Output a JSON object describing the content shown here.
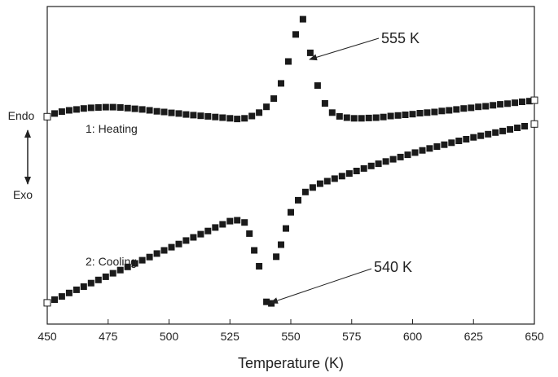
{
  "chart_data": {
    "type": "scatter",
    "xlabel": "Temperature (K)",
    "ylabel": "",
    "xlim": [
      450,
      650
    ],
    "ylim": [
      0,
      1
    ],
    "x_ticks": [
      450,
      475,
      500,
      525,
      550,
      575,
      600,
      625,
      650
    ],
    "x_tick_labels": [
      "450",
      "475",
      "500",
      "525",
      "550",
      "575",
      "600",
      "625",
      "650"
    ],
    "y_ticks_shown": false,
    "grid": false,
    "side_labels": {
      "top": "Endo",
      "bottom": "Exo"
    },
    "series": [
      {
        "name": "1: Heating",
        "marker": "filled-square",
        "color": "#1a1a1a",
        "x": [
          450,
          453,
          456,
          459,
          462,
          465,
          468,
          471,
          474,
          477,
          480,
          483,
          486,
          489,
          492,
          495,
          498,
          501,
          504,
          507,
          510,
          513,
          516,
          519,
          522,
          525,
          528,
          531,
          534,
          537,
          540,
          543,
          546,
          549,
          552,
          555,
          558,
          561,
          564,
          567,
          570,
          573,
          576,
          579,
          582,
          585,
          588,
          591,
          594,
          597,
          600,
          603,
          606,
          609,
          612,
          615,
          618,
          621,
          624,
          627,
          630,
          633,
          636,
          639,
          642,
          645,
          648,
          650
        ],
        "y": [
          0.653,
          0.663,
          0.669,
          0.673,
          0.676,
          0.679,
          0.681,
          0.682,
          0.683,
          0.683,
          0.682,
          0.68,
          0.678,
          0.676,
          0.673,
          0.67,
          0.668,
          0.665,
          0.663,
          0.66,
          0.658,
          0.656,
          0.654,
          0.652,
          0.65,
          0.648,
          0.646,
          0.648,
          0.655,
          0.666,
          0.684,
          0.71,
          0.758,
          0.827,
          0.912,
          0.96,
          0.854,
          0.751,
          0.695,
          0.666,
          0.654,
          0.65,
          0.648,
          0.648,
          0.649,
          0.65,
          0.652,
          0.655,
          0.657,
          0.659,
          0.661,
          0.664,
          0.666,
          0.668,
          0.671,
          0.673,
          0.676,
          0.679,
          0.681,
          0.684,
          0.686,
          0.689,
          0.692,
          0.694,
          0.697,
          0.7,
          0.702,
          0.705
        ]
      },
      {
        "name": "2: Cooling",
        "marker": "filled-square",
        "color": "#1a1a1a",
        "x": [
          450,
          453,
          456,
          459,
          462,
          465,
          468,
          471,
          474,
          477,
          480,
          483,
          486,
          489,
          492,
          495,
          498,
          501,
          504,
          507,
          510,
          513,
          516,
          519,
          522,
          525,
          528,
          531,
          533,
          535,
          537,
          540,
          542,
          544,
          546,
          548,
          550,
          553,
          556,
          559,
          562,
          565,
          568,
          571,
          574,
          577,
          580,
          583,
          586,
          589,
          592,
          595,
          598,
          601,
          604,
          607,
          610,
          613,
          616,
          619,
          622,
          625,
          628,
          631,
          634,
          637,
          640,
          643,
          646,
          650
        ],
        "y": [
          0.067,
          0.077,
          0.087,
          0.098,
          0.108,
          0.118,
          0.129,
          0.139,
          0.149,
          0.16,
          0.17,
          0.18,
          0.191,
          0.201,
          0.211,
          0.222,
          0.232,
          0.242,
          0.252,
          0.263,
          0.273,
          0.283,
          0.293,
          0.304,
          0.314,
          0.324,
          0.327,
          0.32,
          0.285,
          0.232,
          0.182,
          0.07,
          0.065,
          0.212,
          0.25,
          0.301,
          0.352,
          0.39,
          0.416,
          0.43,
          0.442,
          0.45,
          0.458,
          0.466,
          0.474,
          0.482,
          0.49,
          0.498,
          0.505,
          0.512,
          0.519,
          0.526,
          0.533,
          0.54,
          0.547,
          0.553,
          0.559,
          0.565,
          0.571,
          0.577,
          0.582,
          0.588,
          0.593,
          0.598,
          0.603,
          0.608,
          0.613,
          0.618,
          0.623,
          0.63
        ]
      }
    ],
    "annotations": [
      {
        "text": "555 K",
        "points_to": {
          "series": "1: Heating",
          "x": 555
        }
      },
      {
        "text": "540 K",
        "points_to": {
          "series": "2: Cooling",
          "x": 540
        }
      }
    ]
  }
}
